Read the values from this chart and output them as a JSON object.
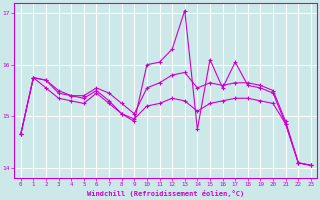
{
  "xlabel": "Windchill (Refroidissement éolien,°C)",
  "xlim": [
    -0.5,
    23.5
  ],
  "ylim": [
    13.8,
    17.2
  ],
  "yticks": [
    14,
    15,
    16,
    17
  ],
  "xticks": [
    0,
    1,
    2,
    3,
    4,
    5,
    6,
    7,
    8,
    9,
    10,
    11,
    12,
    13,
    14,
    15,
    16,
    17,
    18,
    19,
    20,
    21,
    22,
    23
  ],
  "bg_color": "#cce8e8",
  "line_color": "#cc00cc",
  "grid_color": "#ffffff",
  "line1_y": [
    14.65,
    15.75,
    15.7,
    15.5,
    15.4,
    15.4,
    15.55,
    15.45,
    15.25,
    15.05,
    15.55,
    15.65,
    15.8,
    15.85,
    15.55,
    15.65,
    15.6,
    15.65,
    15.65,
    15.6,
    15.5,
    14.9,
    14.1,
    14.05
  ],
  "line2_y": [
    14.65,
    15.75,
    15.7,
    15.45,
    15.4,
    15.35,
    15.5,
    15.3,
    15.05,
    14.9,
    16.0,
    16.05,
    16.3,
    17.05,
    14.75,
    16.1,
    15.55,
    16.05,
    15.6,
    15.55,
    15.45,
    14.85,
    14.1,
    14.05
  ],
  "line3_y": [
    14.65,
    15.75,
    15.55,
    15.35,
    15.3,
    15.25,
    15.45,
    15.25,
    15.05,
    14.95,
    15.2,
    15.25,
    15.35,
    15.3,
    15.1,
    15.25,
    15.3,
    15.35,
    15.35,
    15.3,
    15.25,
    14.85,
    14.1,
    14.05
  ]
}
